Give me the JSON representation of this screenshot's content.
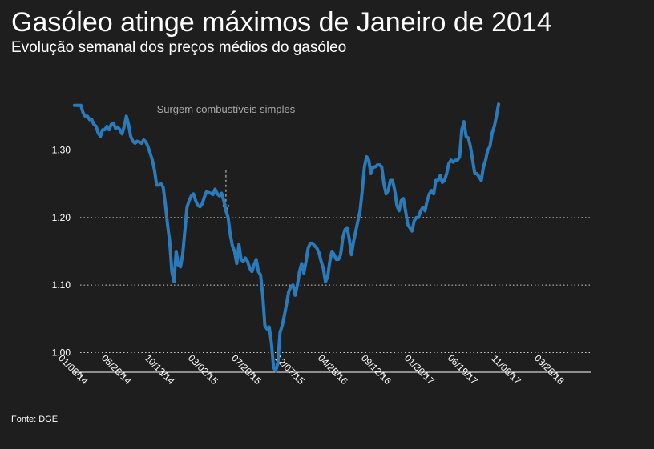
{
  "header": {
    "title": "Gasóleo atinge máximos de Janeiro de 2014",
    "subtitle": "Evolução semanal dos preços médios do gasóleo"
  },
  "footer": {
    "source": "Fonte: DGE"
  },
  "colors": {
    "background": "#1e1e1e",
    "line": "#2b7bbb",
    "text": "#ffffff",
    "grid": "#cccccc",
    "annotation": "#a9a9a9"
  },
  "chart_data": {
    "type": "line",
    "title": "Gasóleo atinge máximos de Janeiro de 2014",
    "subtitle": "Evolução semanal dos preços médios do gasóleo",
    "xlabel": "",
    "ylabel": "",
    "ylim": [
      0.97,
      1.385
    ],
    "grid": "horizontal dotted",
    "legend": "none",
    "y_ticks": [
      {
        "value": 1.0,
        "label": "1.00"
      },
      {
        "value": 1.1,
        "label": "1.10"
      },
      {
        "value": 1.2,
        "label": "1.20"
      },
      {
        "value": 1.3,
        "label": "1.30"
      }
    ],
    "x_ticks": [
      {
        "value": 0,
        "label": "01/06/14"
      },
      {
        "value": 20,
        "label": "05/26/14"
      },
      {
        "value": 40,
        "label": "10/13/14"
      },
      {
        "value": 60,
        "label": "03/02/15"
      },
      {
        "value": 80,
        "label": "07/20/15"
      },
      {
        "value": 100,
        "label": "12/07/15"
      },
      {
        "value": 120,
        "label": "04/25/16"
      },
      {
        "value": 140,
        "label": "09/12/16"
      },
      {
        "value": 160,
        "label": "01/30/17"
      },
      {
        "value": 180,
        "label": "06/19/17"
      },
      {
        "value": 200,
        "label": "11/06/17"
      },
      {
        "value": 220,
        "label": "03/26/18"
      }
    ],
    "annotations": [
      {
        "text": "Surgem combustíveis simples",
        "x": 67,
        "arrow_top": 1.27,
        "arrow_bottom": 1.21
      }
    ],
    "series": [
      {
        "x_start": -3,
        "values": [
          1.366,
          1.366,
          1.366,
          1.366,
          1.355,
          1.35,
          1.35,
          1.345,
          1.345,
          1.338,
          1.335,
          1.325,
          1.32,
          1.33,
          1.33,
          1.335,
          1.33,
          1.338,
          1.34,
          1.332,
          1.334,
          1.33,
          1.324,
          1.335,
          1.35,
          1.338,
          1.32,
          1.313,
          1.31,
          1.313,
          1.312,
          1.31,
          1.315,
          1.312,
          1.305,
          1.295,
          1.285,
          1.27,
          1.248,
          1.248,
          1.25,
          1.245,
          1.22,
          1.19,
          1.165,
          1.12,
          1.105,
          1.15,
          1.13,
          1.127,
          1.145,
          1.18,
          1.215,
          1.225,
          1.232,
          1.235,
          1.225,
          1.218,
          1.216,
          1.22,
          1.23,
          1.238,
          1.237,
          1.236,
          1.234,
          1.242,
          1.235,
          1.232,
          1.236,
          1.225,
          1.21,
          1.2,
          1.175,
          1.158,
          1.15,
          1.132,
          1.16,
          1.138,
          1.135,
          1.14,
          1.135,
          1.125,
          1.12,
          1.13,
          1.138,
          1.12,
          1.115,
          1.085,
          1.04,
          1.035,
          1.038,
          1.015,
          0.978,
          0.973,
          0.985,
          1.03,
          1.04,
          1.055,
          1.072,
          1.09,
          1.098,
          1.1,
          1.085,
          1.1,
          1.12,
          1.132,
          1.118,
          1.135,
          1.155,
          1.162,
          1.162,
          1.158,
          1.155,
          1.148,
          1.135,
          1.125,
          1.105,
          1.112,
          1.135,
          1.15,
          1.145,
          1.138,
          1.138,
          1.145,
          1.17,
          1.182,
          1.185,
          1.168,
          1.145,
          1.165,
          1.18,
          1.195,
          1.21,
          1.24,
          1.275,
          1.29,
          1.285,
          1.265,
          1.275,
          1.275,
          1.278,
          1.278,
          1.275,
          1.25,
          1.235,
          1.24,
          1.255,
          1.255,
          1.24,
          1.218,
          1.21,
          1.225,
          1.228,
          1.21,
          1.19,
          1.185,
          1.18,
          1.195,
          1.2,
          1.2,
          1.21,
          1.215,
          1.21,
          1.225,
          1.235,
          1.24,
          1.235,
          1.255,
          1.255,
          1.262,
          1.252,
          1.255,
          1.265,
          1.28,
          1.285,
          1.282,
          1.285,
          1.285,
          1.29,
          1.33,
          1.342,
          1.32,
          1.318,
          1.305,
          1.285,
          1.265,
          1.265,
          1.26,
          1.255,
          1.275,
          1.285,
          1.3,
          1.305,
          1.325,
          1.335,
          1.35,
          1.368
        ]
      }
    ]
  }
}
